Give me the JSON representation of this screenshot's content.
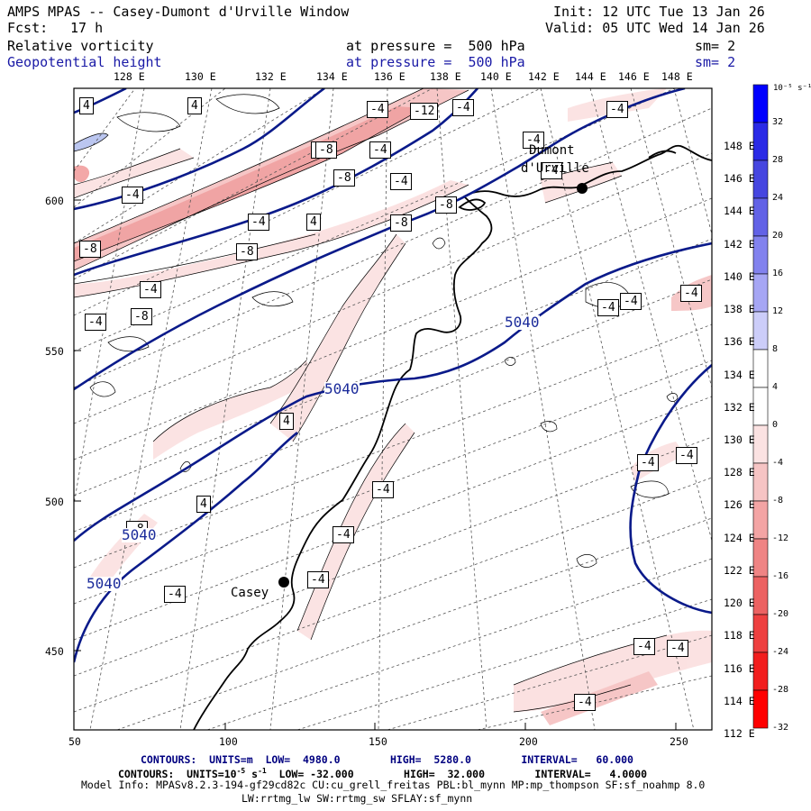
{
  "header": {
    "title": "AMPS MPAS -- Casey-Dumont d'Urville Window",
    "fcst_label": "Fcst:",
    "fcst_value": "17 h",
    "init": "Init: 12 UTC Tue 13 Jan 26",
    "valid": "Valid: 05 UTC Wed 14 Jan 26",
    "field1": "Relative vorticity",
    "field1_level": "at pressure =  500 hPa",
    "field1_sm": "sm= 2",
    "field2": "Geopotential height",
    "field2_level": "at pressure =  500 hPa",
    "field2_sm": "sm= 2"
  },
  "map": {
    "longitude_labels": [
      "128 E",
      "130 E",
      "132 E",
      "134 E",
      "136 E",
      "138 E",
      "140 E",
      "142 E",
      "144 E",
      "146 E",
      "148 E"
    ],
    "latitude_labels": [
      "148 E",
      "146 E",
      "144 E",
      "142 E",
      "140 E",
      "138 E",
      "136 E",
      "134 E",
      "132 E",
      "130 E",
      "128 E",
      "126 E",
      "124 E",
      "122 E",
      "120 E",
      "118 E",
      "116 E",
      "114 E",
      "112 E"
    ],
    "x_ticks": [
      "50",
      "100",
      "150",
      "200",
      "250"
    ],
    "y_ticks": [
      "600",
      "550",
      "500",
      "450"
    ],
    "stations": [
      {
        "name": "Casey"
      },
      {
        "name": "Dumont"
      },
      {
        "name": "d'Urville"
      }
    ],
    "height_labels": [
      "5040",
      "5040",
      "5040",
      "5040"
    ],
    "vort_labels": [
      "4",
      "4",
      "-4",
      "-12",
      "-4",
      "-4",
      "-4",
      "-8",
      "-8",
      "-8",
      "-4",
      "-8",
      "-4",
      "-4",
      "4",
      "-8",
      "-8",
      "-8",
      "-4",
      "-8",
      "-4",
      "-4",
      "-4",
      "-4",
      "4",
      "4",
      "-8",
      "-4",
      "-4",
      "-4",
      "-4",
      "-4",
      "-4",
      "-4",
      "-4",
      "-4",
      "-4",
      "-8",
      "-4"
    ],
    "colors": {
      "height_contour": "#0a1a8a",
      "neg_vort_fill": "#f4b8b8",
      "pos_vort_fill": "#b8c4f0",
      "grid": "#555555"
    }
  },
  "colorbar": {
    "unit": "10⁻⁵ s⁻¹",
    "labels": [
      "32",
      "28",
      "24",
      "20",
      "16",
      "12",
      "8",
      "4",
      "0",
      "-4",
      "-8",
      "-12",
      "-16",
      "-20",
      "-24",
      "-28",
      "-32"
    ],
    "colors": [
      "#0000ff",
      "#2a2ae6",
      "#4646e0",
      "#6262e6",
      "#8282ee",
      "#a6a6f4",
      "#cccdf9",
      "#ffffff",
      "#ffffff",
      "#fbe2e2",
      "#f6c4c4",
      "#f3a4a4",
      "#ef8484",
      "#ec6262",
      "#ee4040",
      "#f21e1e",
      "#ff0000"
    ]
  },
  "footer": {
    "line1_a": "CONTOURS:  UNITS=m  LOW=  4980.0        HIGH=  5280.0        INTERVAL=   60.000",
    "line2_a": "CONTOURS:  UNITS=10",
    "line2_b": "-5",
    "line2_c": " s",
    "line2_d": "-1",
    "line2_e": "  LOW= -32.000        HIGH=  32.000        INTERVAL=   4.0000",
    "line3": "Model Info: MPASv8.2.3-194-gf29cd82c CU:cu_grell_freitas PBL:bl_mynn MP:mp_thompson SF:sf_noahmp 8.0",
    "line4": "LW:rrtmg_lw SW:rrtmg_sw SFLAY:sf_mynn"
  }
}
